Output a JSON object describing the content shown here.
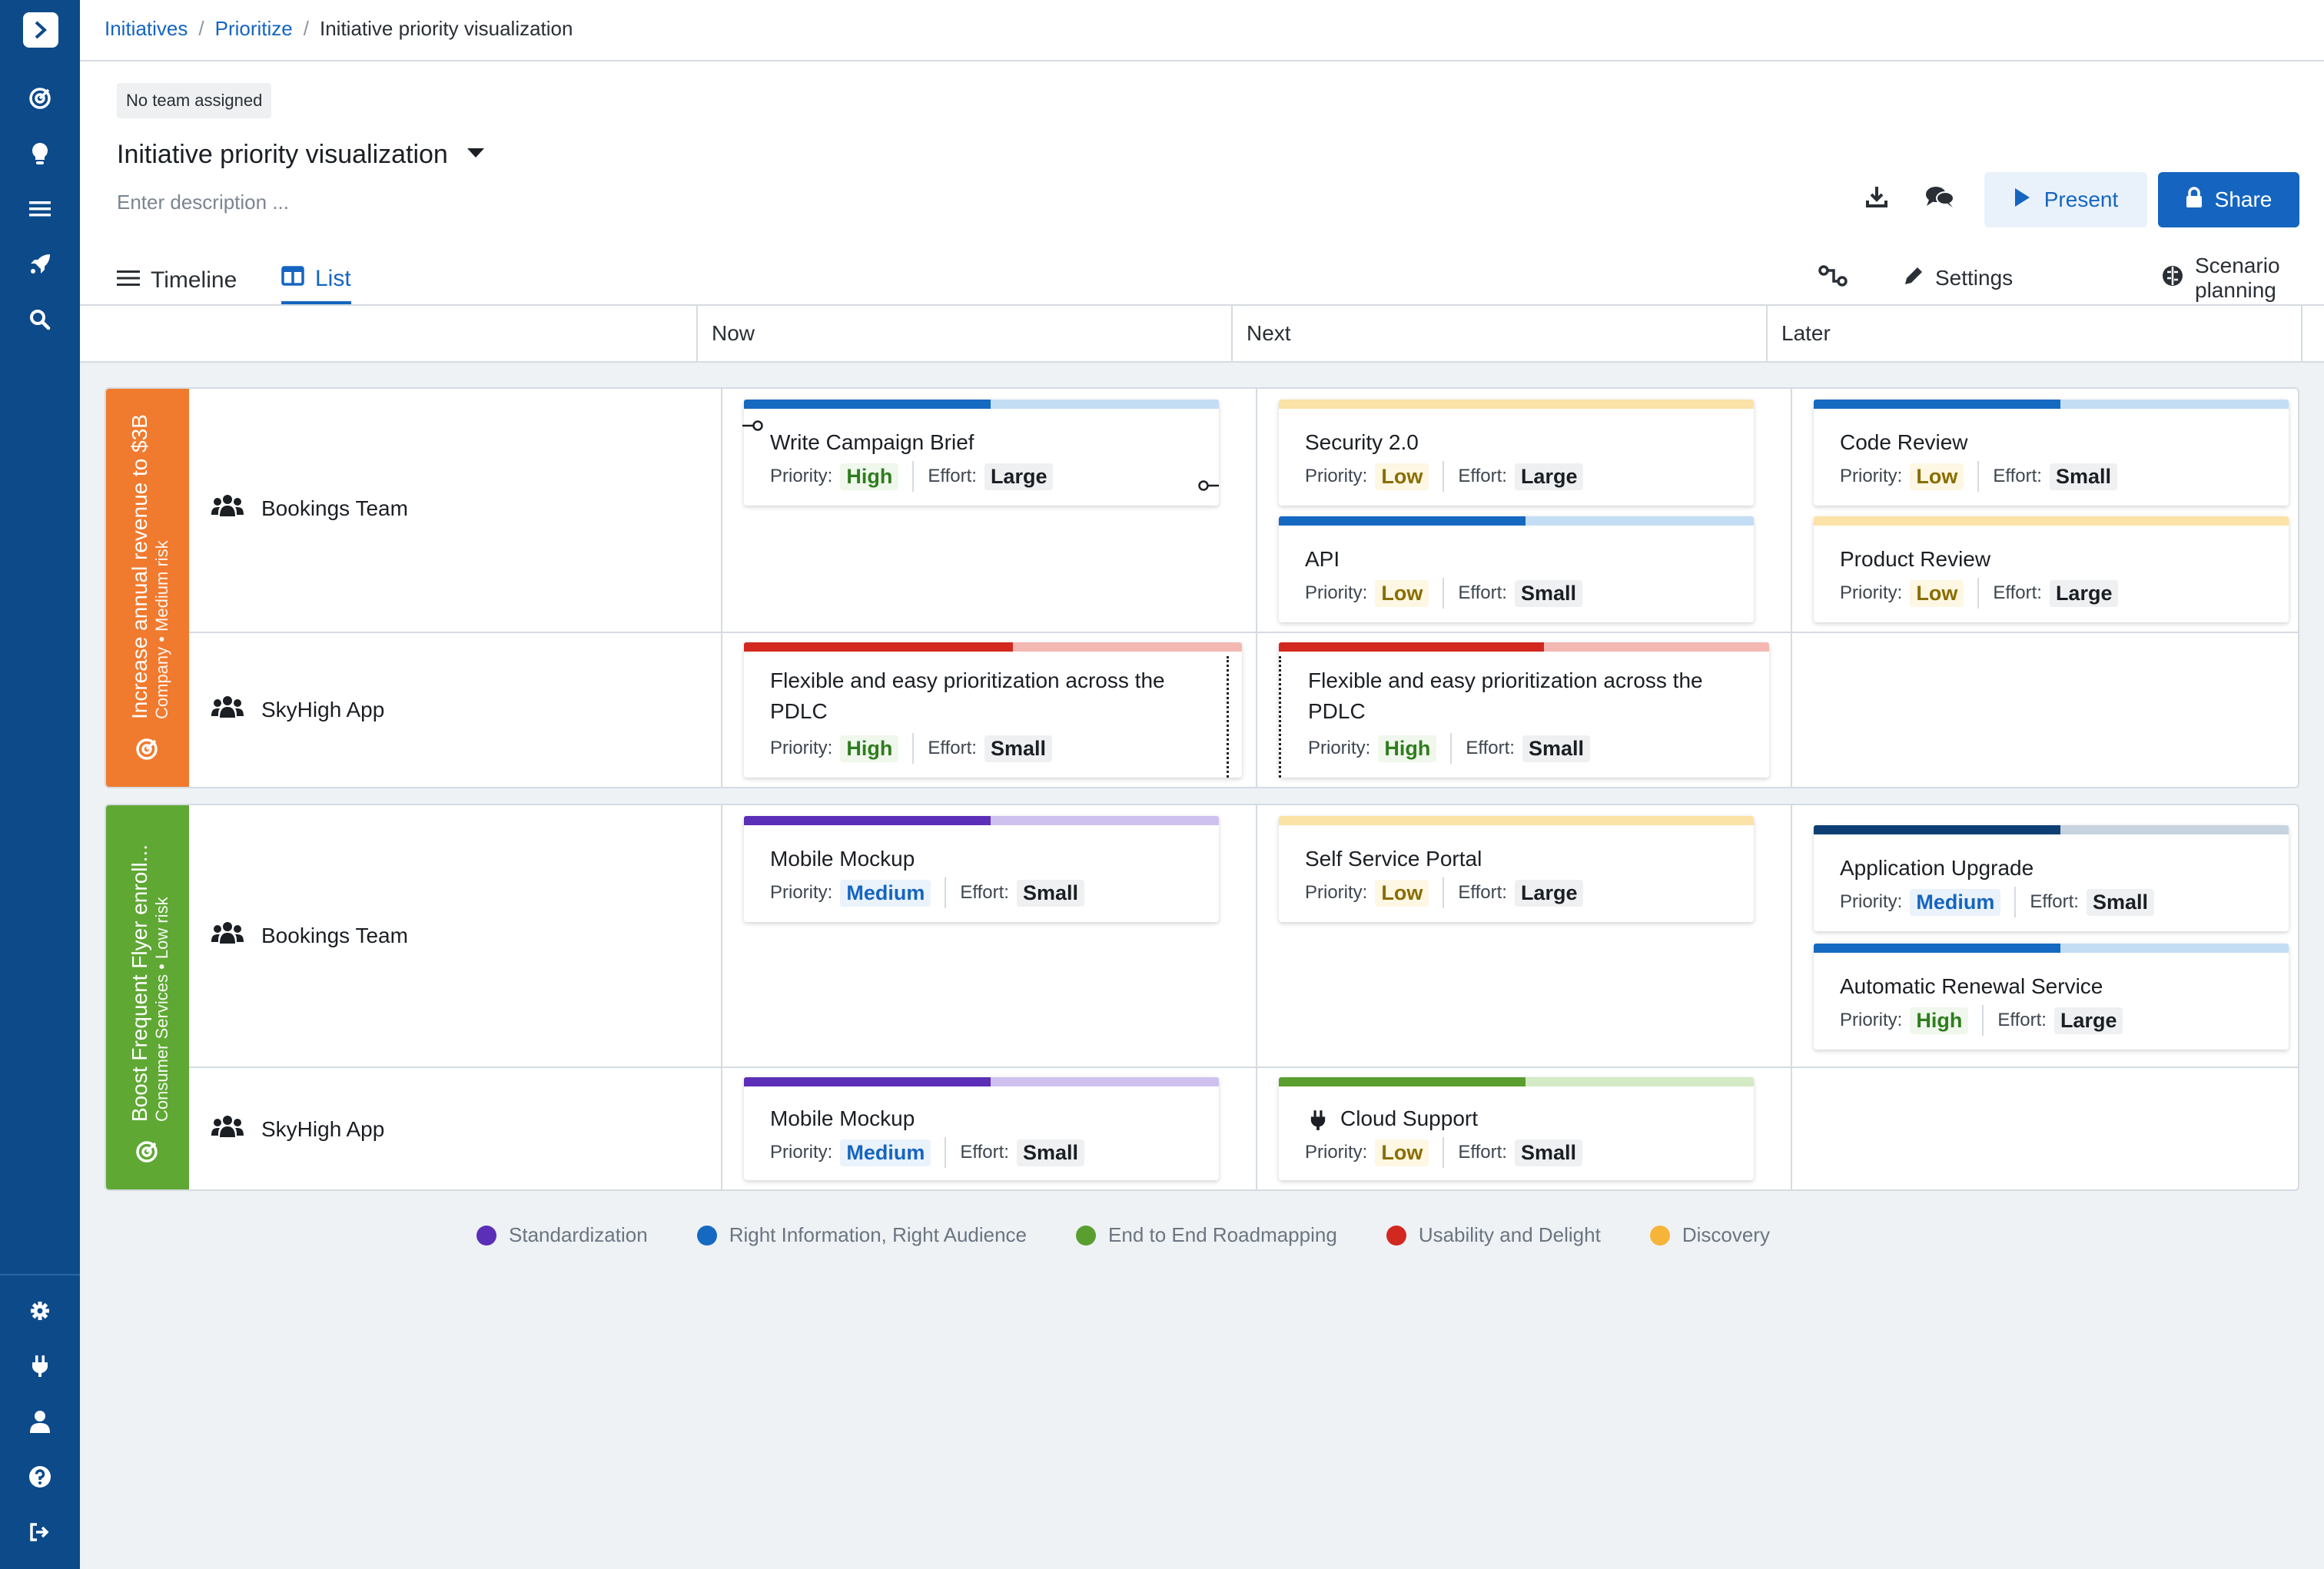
{
  "breadcrumb": {
    "items": [
      "Initiatives",
      "Prioritize"
    ],
    "current": "Initiative priority visualization",
    "sep": "/"
  },
  "header": {
    "team_chip": "No team assigned",
    "title": "Initiative priority visualization",
    "description_placeholder": "Enter description ...",
    "present_label": "Present",
    "share_label": "Share",
    "tabs": [
      {
        "label": "Timeline",
        "active": false
      },
      {
        "label": "List",
        "active": true
      }
    ],
    "settings_label": "Settings",
    "scenario_label": "Scenario planning"
  },
  "columns": [
    "Now",
    "Next",
    "Later"
  ],
  "meta_labels": {
    "priority": "Priority:",
    "effort": "Effort:"
  },
  "objectives": [
    {
      "title": "Increase annual revenue to $3B",
      "subtitle": "Company • Medium risk",
      "color": "#f07a2e",
      "lanes": [
        {
          "team": "Bookings Team",
          "now": [
            {
              "title": "Write Campaign Brief",
              "priority": "High",
              "effort": "Large",
              "theme": "blue"
            }
          ],
          "next": [
            {
              "title": "Security 2.0",
              "priority": "Low",
              "effort": "Large",
              "theme": "yellow"
            },
            {
              "title": "API",
              "priority": "Low",
              "effort": "Small",
              "theme": "blue"
            }
          ],
          "later": [
            {
              "title": "Code Review",
              "priority": "Low",
              "effort": "Small",
              "theme": "blue"
            },
            {
              "title": "Product Review",
              "priority": "Low",
              "effort": "Large",
              "theme": "yellow"
            }
          ]
        },
        {
          "team": "SkyHigh App",
          "now": [
            {
              "title": "Flexible and easy prioritization across the PDLC",
              "priority": "High",
              "effort": "Small",
              "theme": "red"
            }
          ],
          "next": [
            {
              "title": "Flexible and easy prioritization across the PDLC",
              "priority": "High",
              "effort": "Small",
              "theme": "red"
            }
          ],
          "later": []
        }
      ]
    },
    {
      "title": "Boost Frequent Flyer enroll...",
      "subtitle": "Consumer Services • Low risk",
      "color": "#5fa834",
      "lanes": [
        {
          "team": "Bookings Team",
          "now": [
            {
              "title": "Mobile Mockup",
              "priority": "Medium",
              "effort": "Small",
              "theme": "purple"
            }
          ],
          "next": [
            {
              "title": "Self Service Portal",
              "priority": "Low",
              "effort": "Large",
              "theme": "yellow"
            }
          ],
          "later": [
            {
              "title": "Application Upgrade",
              "priority": "Medium",
              "effort": "Small",
              "theme": "navy"
            },
            {
              "title": "Automatic Renewal Service",
              "priority": "High",
              "effort": "Large",
              "theme": "blue"
            }
          ]
        },
        {
          "team": "SkyHigh App",
          "now": [
            {
              "title": "Mobile Mockup",
              "priority": "Medium",
              "effort": "Small",
              "theme": "purple"
            }
          ],
          "next": [
            {
              "title": "Cloud Support",
              "priority": "Low",
              "effort": "Small",
              "theme": "green",
              "icon": "plug-icon"
            }
          ],
          "later": []
        }
      ]
    }
  ],
  "legend": [
    {
      "label": "Standardization",
      "color": "#5b2fb7"
    },
    {
      "label": "Right Information, Right Audience",
      "color": "#1569c0"
    },
    {
      "label": "End to End Roadmapping",
      "color": "#5a9e2f"
    },
    {
      "label": "Usability and Delight",
      "color": "#d2281f"
    },
    {
      "label": "Discovery",
      "color": "#f6b53a"
    }
  ],
  "colors": {
    "brand": "#0d4a8a",
    "accent": "#1565c0"
  },
  "icons": [
    "chevron-right-icon",
    "target-icon",
    "lightbulb-icon",
    "list-icon",
    "rocket-icon",
    "search-icon",
    "gear-icon",
    "plug-icon",
    "user-icon",
    "help-icon",
    "logout-icon",
    "download-icon",
    "comments-icon",
    "play-icon",
    "lock-icon",
    "link-icon",
    "pencil-icon",
    "brain-icon",
    "team-icon"
  ]
}
